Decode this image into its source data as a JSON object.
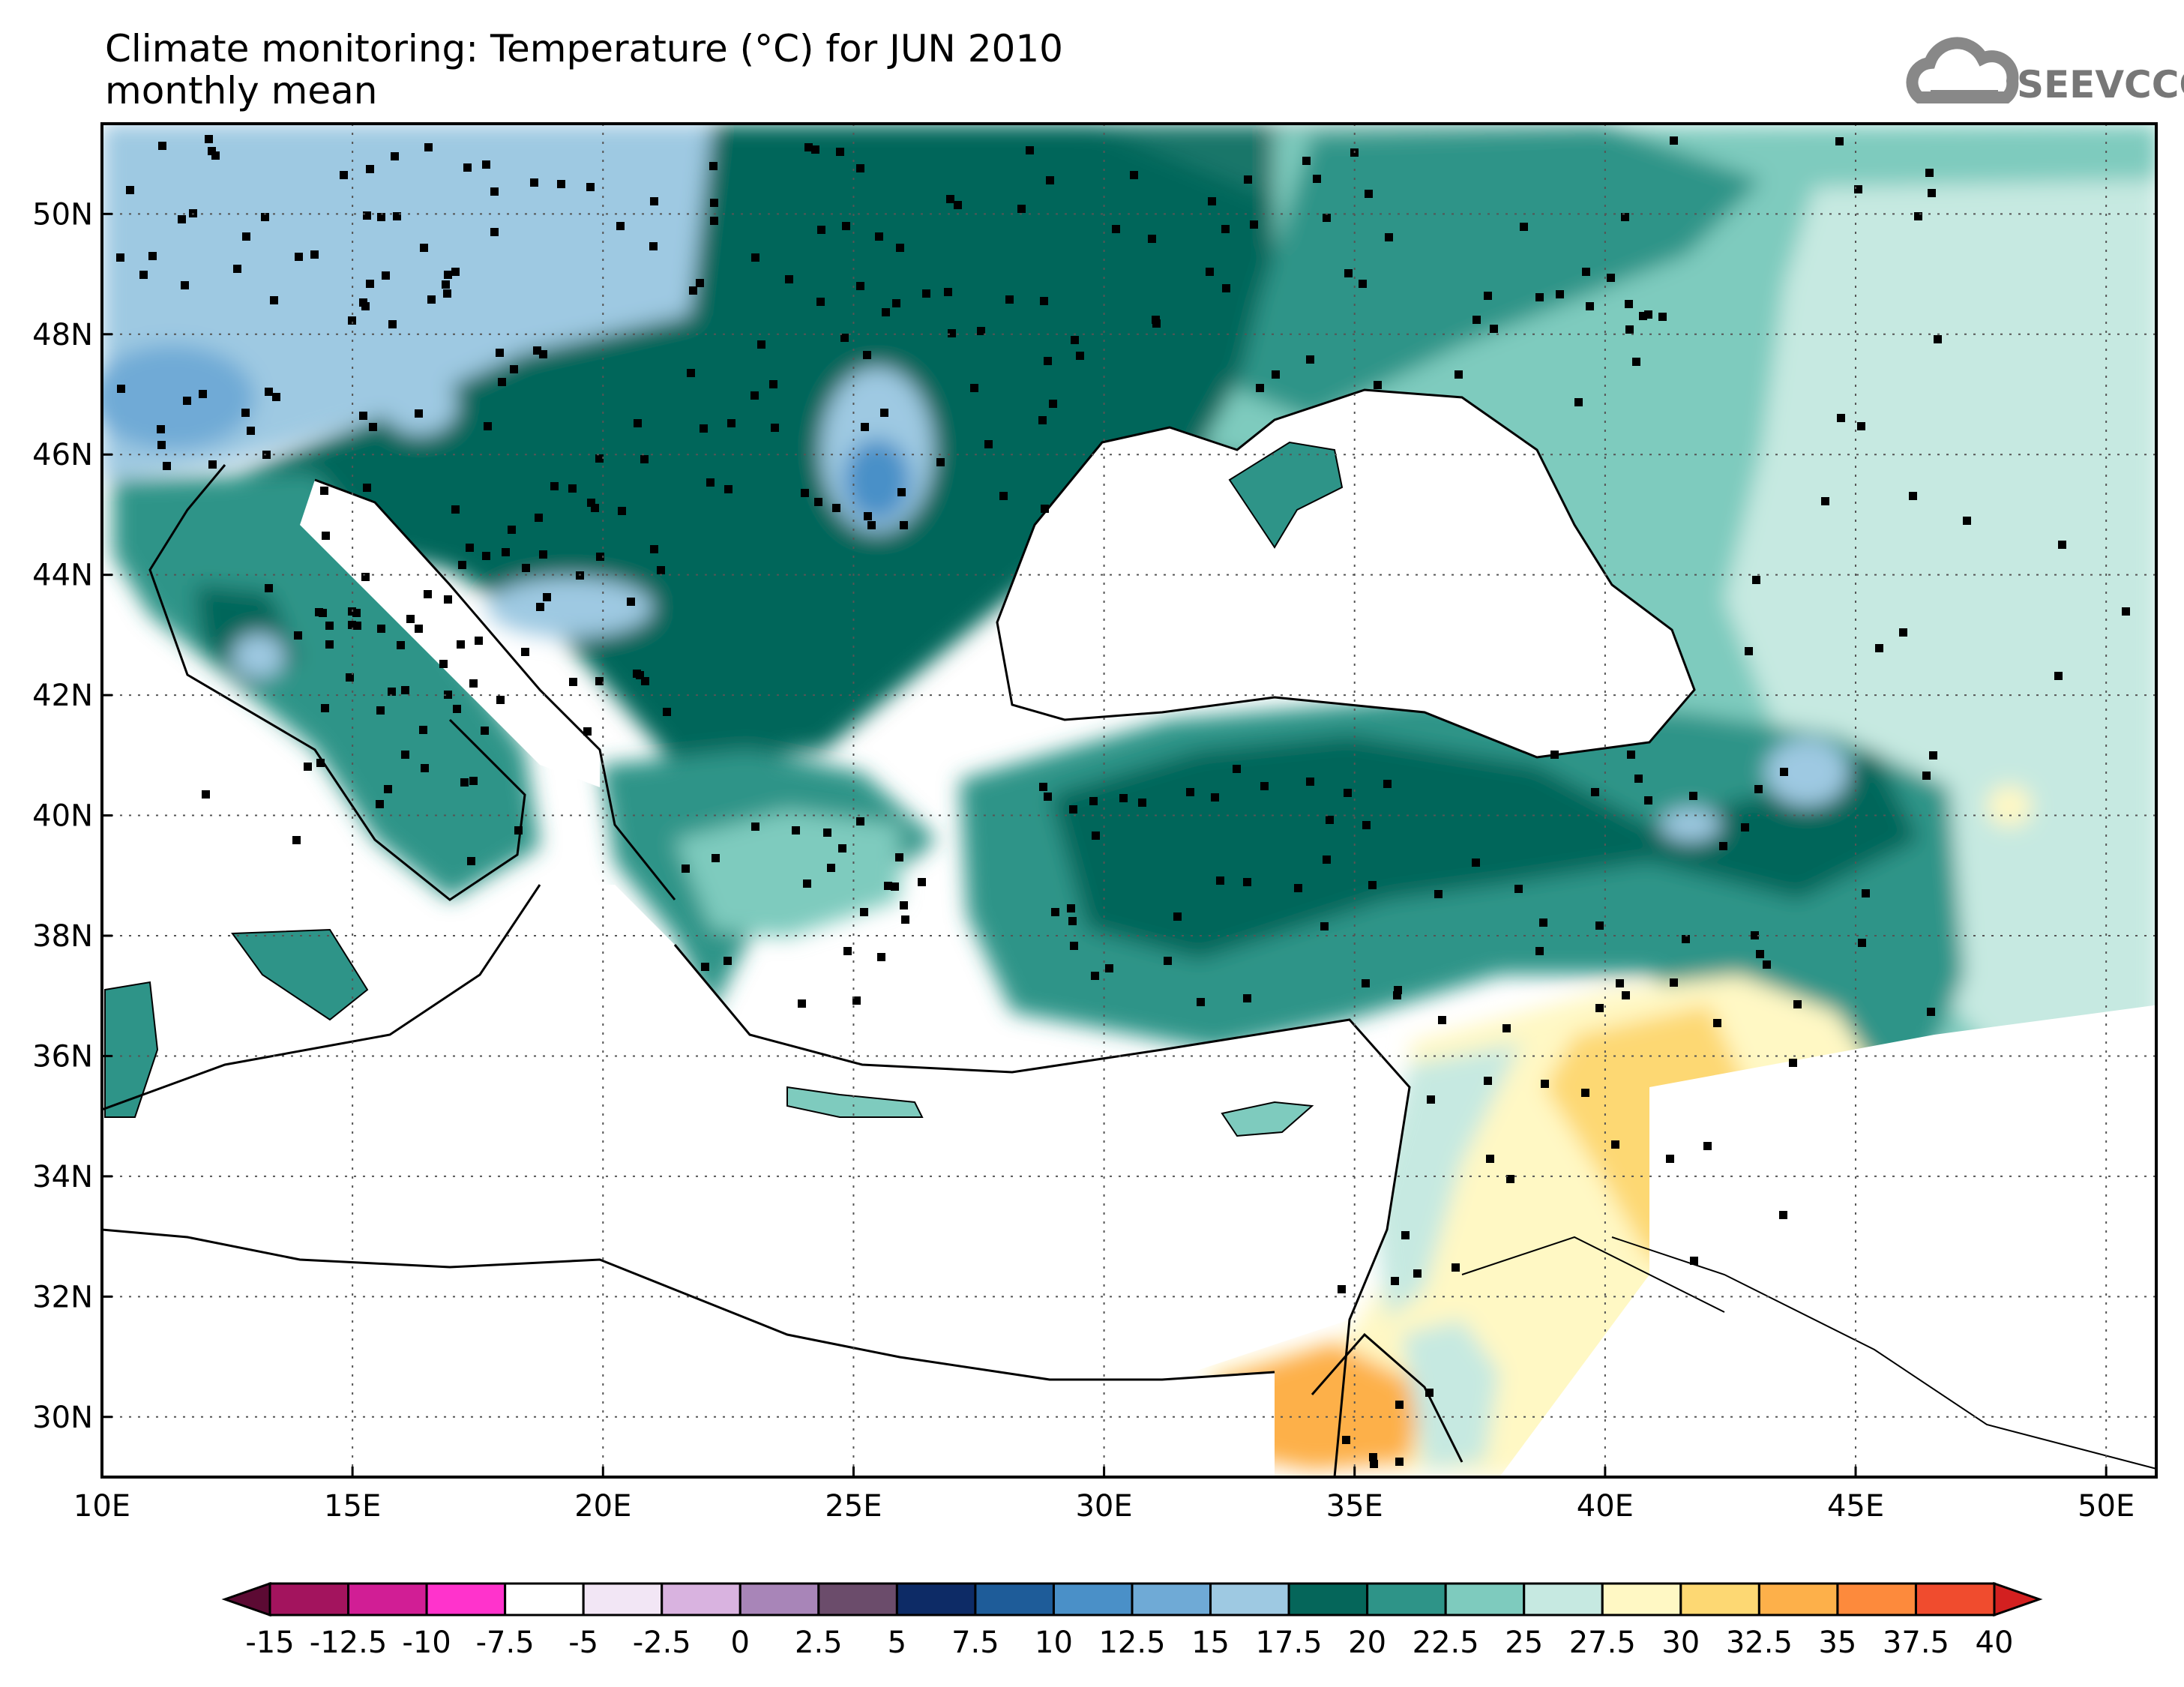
{
  "title": {
    "line1": "Climate monitoring: Temperature (°C) for JUN 2010",
    "line2": "monthly mean"
  },
  "logo": {
    "text": "SEEVCCC",
    "icon": "cloud-icon"
  },
  "map": {
    "lon_range": [
      10,
      51
    ],
    "lat_range": [
      29,
      51.5
    ],
    "x_ticks": [
      "10E",
      "15E",
      "20E",
      "25E",
      "30E",
      "35E",
      "40E",
      "45E",
      "50E"
    ],
    "y_ticks": [
      "30N",
      "32N",
      "34N",
      "36N",
      "38N",
      "40N",
      "42N",
      "44N",
      "46N",
      "48N",
      "50N"
    ],
    "grid": "dotted"
  },
  "colorbar": {
    "labels": [
      "-15",
      "-12.5",
      "-10",
      "-7.5",
      "-5",
      "-2.5",
      "0",
      "2.5",
      "5",
      "7.5",
      "10",
      "12.5",
      "15",
      "17.5",
      "20",
      "22.5",
      "25",
      "27.5",
      "30",
      "32.5",
      "35",
      "37.5",
      "40"
    ],
    "colors": [
      "#5c0a33",
      "#a3145e",
      "#d11e95",
      "#ff33cc",
      "#ffffff",
      "#f2e6f5",
      "#d9b3e0",
      "#a885b8",
      "#6b4c6b",
      "#0d2b66",
      "#1e5c99",
      "#4a90c8",
      "#6faad6",
      "#9ec9e2",
      "#05665a",
      "#2e9488",
      "#7ecbbe",
      "#c6e9e1",
      "#fff8c4",
      "#fdd873",
      "#fdb04a",
      "#fd8a3c",
      "#f04c2e",
      "#d32020"
    ]
  }
}
